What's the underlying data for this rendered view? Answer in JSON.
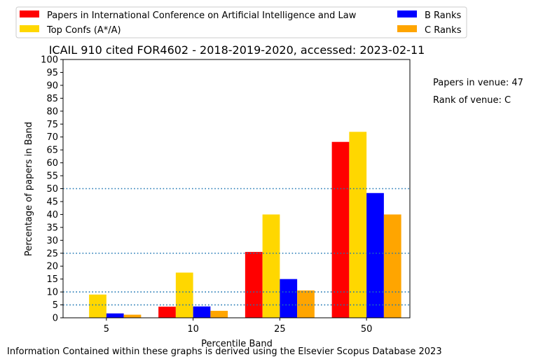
{
  "chart_data": {
    "type": "bar",
    "title": "ICAIL 910 cited FOR4602 - 2018-2019-2020, accessed: 2023-02-11",
    "xlabel": "Percentile Band",
    "ylabel": "Percentage of papers in Band",
    "categories": [
      "5",
      "10",
      "25",
      "50"
    ],
    "ylim": [
      0,
      100
    ],
    "yticks": [
      "0",
      "5",
      "10",
      "15",
      "20",
      "25",
      "30",
      "35",
      "40",
      "45",
      "50",
      "55",
      "60",
      "65",
      "70",
      "75",
      "80",
      "85",
      "90",
      "95",
      "100"
    ],
    "reference_lines": [
      5,
      10,
      25,
      50
    ],
    "legend_position": "top",
    "series": [
      {
        "name": "Papers in International Conference on Artificial Intelligence and Law",
        "color": "#ff0000",
        "values": [
          0,
          4.3,
          25.5,
          68.1
        ]
      },
      {
        "name": "Top Confs (A*/A)",
        "color": "#ffd700",
        "values": [
          9.0,
          17.5,
          40.0,
          72.0
        ]
      },
      {
        "name": "B Ranks",
        "color": "#0000ff",
        "values": [
          1.7,
          4.4,
          15.0,
          48.3
        ]
      },
      {
        "name": "C Ranks",
        "color": "#ffa500",
        "values": [
          1.2,
          2.7,
          10.6,
          40.0
        ]
      }
    ]
  },
  "annotations": {
    "papers_in_venue": "Papers in venue: 47",
    "rank_of_venue": "Rank of venue: C",
    "footer": "Information Contained within these graphs is derived using the Elsevier Scopus Database 2023"
  },
  "colors": {
    "reference_line": "#1f77b4"
  }
}
